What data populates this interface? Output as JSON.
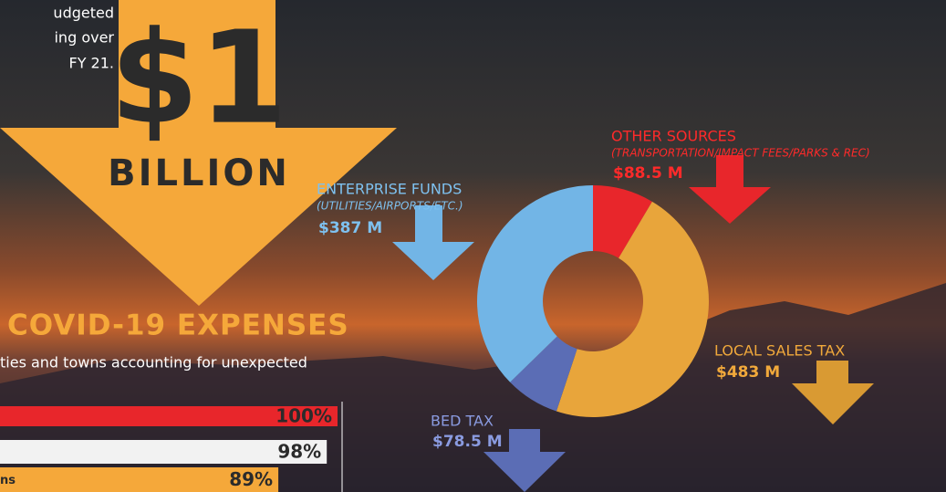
{
  "texts": {
    "intro": [
      "udgeted",
      "ing over",
      "FY 21."
    ],
    "big_number": "$1",
    "big_unit": "BILLION",
    "section_title": "COVID-19 EXPENSES",
    "section_subtitle": "ties and towns accounting for unexpected"
  },
  "chart_data": [
    {
      "type": "donut",
      "categories": [
        "OTHER SOURCES",
        "LOCAL SALES TAX",
        "BED TAX",
        "ENTERPRISE FUNDS"
      ],
      "subtitles": [
        "(TRANSPORTATION/IMPACT FEES/PARKS & REC)",
        null,
        null,
        "(UTILITIES/AIRPORTS/ETC.)"
      ],
      "values": [
        88.5,
        483,
        78.5,
        387
      ],
      "value_labels": [
        "$88.5 M",
        "$483 M",
        "$78.5 M",
        "$387 M"
      ],
      "colors": [
        "#e8262b",
        "#e8a53b",
        "#5b6db5",
        "#72b5e6"
      ]
    },
    {
      "type": "hbar",
      "categories": [
        null,
        null,
        "ns"
      ],
      "values": [
        100,
        98,
        89
      ],
      "value_labels": [
        "100%",
        "98%",
        "89%"
      ],
      "colors": [
        "#e8262b",
        "#f2f2f2",
        "#f5a83a"
      ],
      "xlim": [
        0,
        100
      ]
    }
  ]
}
